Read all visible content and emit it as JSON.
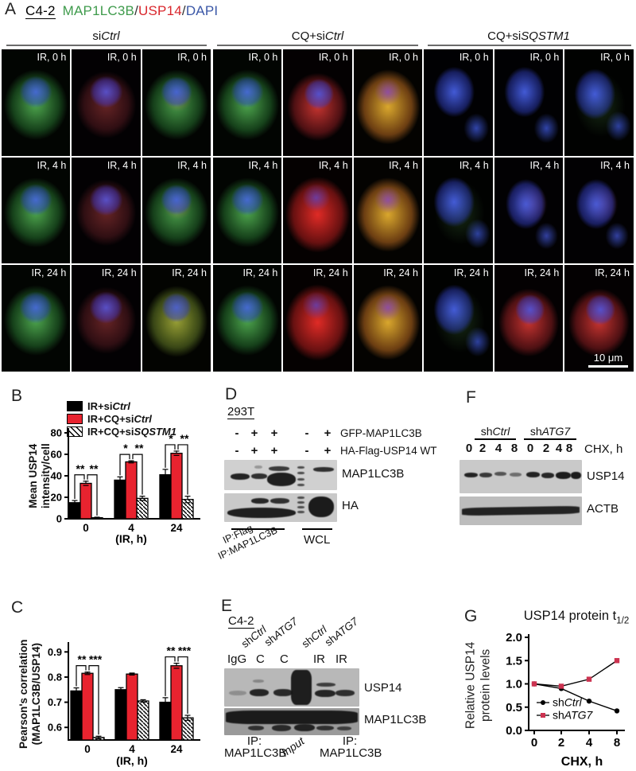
{
  "panel_a": {
    "label": "A",
    "title": {
      "cell_line": "C4-2",
      "stain1": "MAP1LC3B",
      "sep1": "/",
      "stain2": "USP14",
      "sep2": "/",
      "stain3": "DAPI"
    },
    "colors": {
      "map1lc3b": "#3f9b4c",
      "usp14": "#d9262c",
      "dapi": "#3a57a7"
    },
    "groups": [
      {
        "pre": "si",
        "it": "Ctrl"
      },
      {
        "pre": "CQ+si",
        "it": "Ctrl"
      },
      {
        "pre": "CQ+si",
        "it": "SQSTM1"
      }
    ],
    "row_labels": [
      "IR, 0 h",
      "IR, 4 h",
      "IR, 24 h"
    ],
    "scale_bar": "10 μm"
  },
  "panel_b": {
    "label": "B",
    "legend": [
      {
        "pre": "IR+si",
        "it": "Ctrl"
      },
      {
        "pre": "IR+CQ+si",
        "it": "Ctrl"
      },
      {
        "pre": "IR+CQ+si",
        "it": "SQSTM1"
      }
    ],
    "ylabel_line1": "Mean USP14",
    "ylabel_line2": "intensity/cell"
  },
  "panel_c": {
    "label": "C",
    "ylabel_line1": "Pearson's correlation",
    "ylabel_line2": "(MAP1LC3B/USP14)"
  },
  "panel_d": {
    "label": "D",
    "cell_line": "293T",
    "rows": [
      {
        "signs": [
          "-",
          "+",
          "+",
          "-",
          "+"
        ],
        "name": "GFP-MAP1LC3B"
      },
      {
        "signs": [
          "-",
          "+",
          "+",
          "-",
          "+"
        ],
        "name": "HA-Flag-USP14 WT"
      }
    ],
    "blots": [
      "MAP1LC3B",
      "HA"
    ],
    "ip_label1": "IP:Flag",
    "ip_label2": "IP:MAP1LC3B",
    "wcl": "WCL"
  },
  "panel_e": {
    "label": "E",
    "cell_line": "C4-2",
    "sh_labels": [
      {
        "pre": "sh",
        "it": "Ctrl"
      },
      {
        "pre": "sh",
        "it": "ATG7"
      },
      {
        "pre": "sh",
        "it": "Ctrl"
      },
      {
        "pre": "sh",
        "it": "ATG7"
      }
    ],
    "lanes": [
      "IgG",
      "C",
      "C",
      "IR",
      "IR"
    ],
    "blots": [
      "USP14",
      "MAP1LC3B"
    ],
    "bottom": {
      "ip1_line1": "IP:",
      "ip1_line2": "MAP1LC3B",
      "input": "Input",
      "ip2_line1": "IP:",
      "ip2_line2": "MAP1LC3B"
    }
  },
  "panel_f": {
    "label": "F",
    "groups": [
      {
        "pre": "sh",
        "it": "Ctrl"
      },
      {
        "pre": "sh",
        "it": "ATG7"
      }
    ],
    "lane_times": [
      "0",
      "2",
      "4",
      "8",
      "0",
      "2",
      "4",
      "8"
    ],
    "time_label": "CHX, h",
    "blots": [
      "USP14",
      "ACTB"
    ]
  },
  "panel_g": {
    "label": "G",
    "title_pre": "USP14 protein t",
    "title_sub": "1/2",
    "ylabel_line1": "Relative USP14",
    "ylabel_line2": "protein levels"
  },
  "chart_data": [
    {
      "panel": "B",
      "type": "bar",
      "categories": [
        "0",
        "4",
        "24"
      ],
      "xlabel": "(IR, h)",
      "ylabel": "Mean USP14 intensity/cell",
      "ylim": [
        0,
        80
      ],
      "yticks": [
        "0",
        "20",
        "40",
        "60",
        "80"
      ],
      "grid": false,
      "legend_position": "top-left",
      "series": [
        {
          "name": "IR+siCtrl",
          "color": "#000000",
          "values": [
            15,
            36,
            41
          ],
          "errors": [
            2,
            3,
            5
          ]
        },
        {
          "name": "IR+CQ+siCtrl",
          "color": "#e8232f",
          "values": [
            33,
            53,
            61
          ],
          "errors": [
            2,
            1,
            2
          ]
        },
        {
          "name": "IR+CQ+siSQSTM1",
          "pattern": "hatch",
          "color": "#ffffff",
          "values": [
            1,
            19,
            18
          ],
          "errors": [
            0.5,
            2,
            3
          ]
        }
      ],
      "significance": [
        [
          "**",
          "**"
        ],
        [
          "*",
          "**"
        ],
        [
          "*",
          "**"
        ]
      ]
    },
    {
      "panel": "C",
      "type": "bar",
      "categories": [
        "0",
        "4",
        "24"
      ],
      "xlabel": "(IR, h)",
      "ylabel": "Pearson's correlation (MAP1LC3B/USP14)",
      "ylim": [
        0.55,
        0.92
      ],
      "yticks": [
        "0.6",
        "0.7",
        "0.8",
        "0.9"
      ],
      "grid": false,
      "series": [
        {
          "name": "IR+siCtrl",
          "color": "#000000",
          "values": [
            0.745,
            0.75,
            0.7
          ],
          "errors": [
            0.012,
            0.008,
            0.018
          ]
        },
        {
          "name": "IR+CQ+siCtrl",
          "color": "#e8232f",
          "values": [
            0.815,
            0.812,
            0.845
          ],
          "errors": [
            0.005,
            0.004,
            0.01
          ]
        },
        {
          "name": "IR+CQ+siSQSTM1",
          "pattern": "hatch",
          "color": "#ffffff",
          "values": [
            0.56,
            0.705,
            0.638
          ],
          "errors": [
            0.005,
            0.005,
            0.01
          ]
        }
      ],
      "significance": [
        [
          "**",
          "***"
        ],
        null,
        [
          "**",
          "***"
        ]
      ]
    },
    {
      "panel": "G",
      "type": "line",
      "title": "USP14 protein t1/2",
      "x": [
        "0",
        "2",
        "4",
        "8"
      ],
      "xlabel": "CHX, h",
      "ylabel": "Relative USP14 protein levels",
      "ylim": [
        0,
        2
      ],
      "yticks": [
        "0.0",
        "0.5",
        "1.0",
        "1.5",
        "2.0"
      ],
      "grid": false,
      "legend_position": "bottom-left",
      "series": [
        {
          "name": "shCtrl",
          "name_pre": "sh",
          "name_it": "Ctrl",
          "color": "#000000",
          "marker": "circle",
          "values": [
            1.0,
            0.9,
            0.63,
            0.42
          ]
        },
        {
          "name": "shATG7",
          "name_pre": "sh",
          "name_it": "ATG7",
          "color": "#cc3350",
          "marker": "square",
          "values": [
            1.0,
            0.95,
            1.1,
            1.5
          ]
        }
      ]
    }
  ]
}
